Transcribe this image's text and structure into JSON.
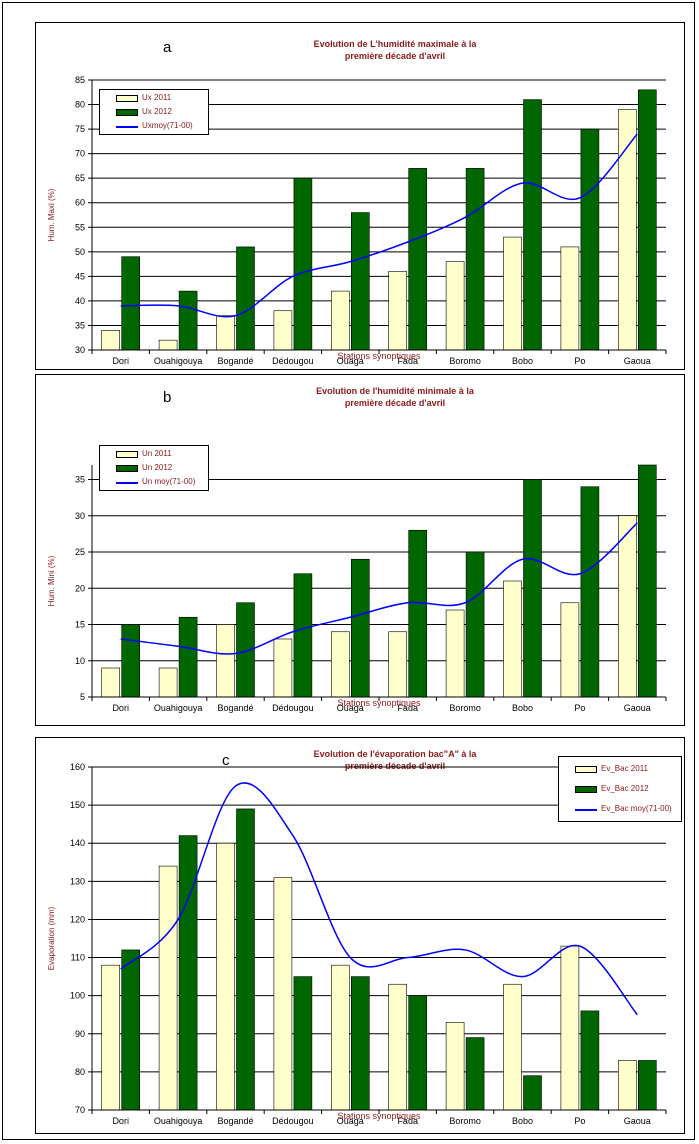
{
  "colors": {
    "y2011": "#ffffcc",
    "y2012": "#006600",
    "normal": "#0000ff",
    "title": "#8b1a1a",
    "axis_label": "#8b1a1a"
  },
  "chart_data": [
    {
      "type": "bar",
      "letter": "a",
      "title_line1": "Evolution de L'humidité maximale  à la",
      "title_line2": "première décade d'avril",
      "xlabel": "Stations synoptiques",
      "ylabel": "Hum. Maxi (%)",
      "ylim": [
        30,
        85
      ],
      "ytick_step": 5,
      "legend_position": "top-left",
      "categories": [
        "Dori",
        "Ouahigouya",
        "Bogandé",
        "Dédougou",
        "Ouaga",
        "Fada",
        "Boromo",
        "Bobo",
        "Po",
        "Gaoua"
      ],
      "series": [
        {
          "name": "Ux 2011",
          "kind": "bar",
          "values": [
            34,
            32,
            37,
            38,
            42,
            46,
            48,
            53,
            51,
            79
          ]
        },
        {
          "name": "Ux 2012",
          "kind": "bar",
          "values": [
            49,
            42,
            51,
            65,
            58,
            67,
            67,
            81,
            75,
            83
          ]
        },
        {
          "name": "Uxmoy(71-00)",
          "kind": "line",
          "values": [
            39,
            39,
            37,
            45,
            48,
            52,
            57,
            64,
            61,
            74
          ]
        }
      ]
    },
    {
      "type": "bar",
      "letter": "b",
      "title_line1": "Evolution de l'humidité minimale à la",
      "title_line2": "première décade d'avril",
      "xlabel": "Stations synoptiques",
      "ylabel": "Hum. Mini (%)",
      "ylim": [
        5,
        37
      ],
      "ytick_step": 5,
      "legend_position": "top-left",
      "categories": [
        "Dori",
        "Ouahigouya",
        "Bogandé",
        "Dédougou",
        "Ouaga",
        "Fada",
        "Boromo",
        "Bobo",
        "Po",
        "Gaoua"
      ],
      "series": [
        {
          "name": "Un 2011",
          "kind": "bar",
          "values": [
            9,
            9,
            15,
            13,
            14,
            14,
            17,
            21,
            18,
            30
          ]
        },
        {
          "name": "Un 2012",
          "kind": "bar",
          "values": [
            15,
            16,
            18,
            22,
            24,
            28,
            25,
            35,
            34,
            37
          ]
        },
        {
          "name": "Un moy(71-00)",
          "kind": "line",
          "values": [
            13,
            12,
            11,
            14,
            16,
            18,
            18,
            24,
            22,
            29
          ]
        }
      ]
    },
    {
      "type": "bar",
      "letter": "c",
      "title_line1": "Evolution de l'évaporation bac\"A\" à la",
      "title_line2": "première décade d'avril",
      "xlabel": "Stations synoptiques",
      "ylabel": "Evaporation (mm)",
      "ylim": [
        70,
        160
      ],
      "ytick_step": 10,
      "legend_position": "top-right",
      "categories": [
        "Dori",
        "Ouahigouya",
        "Bogandé",
        "Dédougou",
        "Ouaga",
        "Fada",
        "Boromo",
        "Bobo",
        "Po",
        "Gaoua"
      ],
      "series": [
        {
          "name": "Ev_Bac 2011",
          "kind": "bar",
          "values": [
            108,
            134,
            140,
            131,
            108,
            103,
            93,
            103,
            113,
            83
          ]
        },
        {
          "name": "Ev_Bac 2012",
          "kind": "bar",
          "values": [
            112,
            142,
            149,
            105,
            105,
            100,
            89,
            79,
            96,
            83
          ]
        },
        {
          "name": "Ev_Bac moy(71-00)",
          "kind": "line",
          "values": [
            107,
            120,
            155,
            142,
            110,
            110,
            112,
            105,
            113,
            95
          ]
        }
      ]
    }
  ]
}
